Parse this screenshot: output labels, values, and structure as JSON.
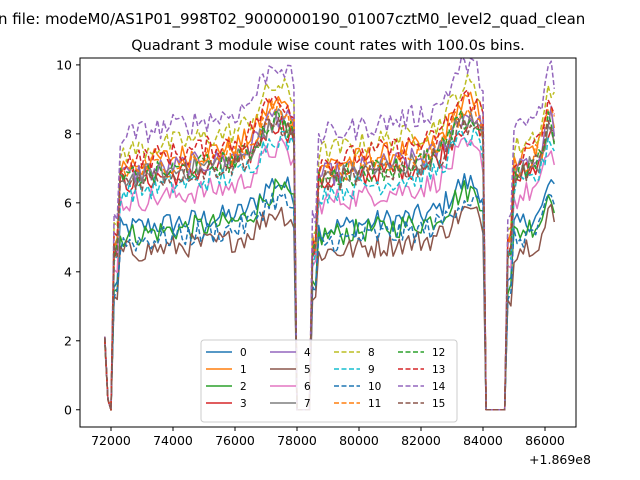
{
  "suptitle": "n file: modeM0/AS1P01_998T02_9000000190_01007cztM0_level2_quad_clean",
  "chart_data": {
    "type": "line",
    "title": "Quadrant 3 module wise count rates with 100.0s bins.",
    "xlabel": "",
    "ylabel": "",
    "x_offset_label": "+1.869e8",
    "xlim": [
      71000,
      87000
    ],
    "ylim": [
      -0.5,
      10.2
    ],
    "x_ticks": [
      72000,
      74000,
      76000,
      78000,
      80000,
      82000,
      84000,
      86000
    ],
    "x_tick_labels": [
      "72000",
      "74000",
      "76000",
      "78000",
      "80000",
      "82000",
      "84000",
      "86000"
    ],
    "y_ticks": [
      0,
      2,
      4,
      6,
      8,
      10
    ],
    "y_tick_labels": [
      "0",
      "2",
      "4",
      "6",
      "8",
      "10"
    ],
    "grid": false,
    "legend_position": "lower-center",
    "legend_columns": 4,
    "series": [
      {
        "name": "0",
        "color": "#1f77b4",
        "dash": "solid",
        "level": 5.4
      },
      {
        "name": "1",
        "color": "#ff7f0e",
        "dash": "solid",
        "level": 7.3
      },
      {
        "name": "2",
        "color": "#2ca02c",
        "dash": "solid",
        "level": 5.2
      },
      {
        "name": "3",
        "color": "#d62728",
        "dash": "solid",
        "level": 6.8
      },
      {
        "name": "4",
        "color": "#9467bd",
        "dash": "solid",
        "level": 7.0
      },
      {
        "name": "5",
        "color": "#8c564b",
        "dash": "solid",
        "level": 4.7
      },
      {
        "name": "6",
        "color": "#e377c2",
        "dash": "solid",
        "level": 6.2
      },
      {
        "name": "7",
        "color": "#7f7f7f",
        "dash": "solid",
        "level": 6.9
      },
      {
        "name": "8",
        "color": "#bcbd22",
        "dash": "dashed",
        "level": 7.7
      },
      {
        "name": "9",
        "color": "#17becf",
        "dash": "dashed",
        "level": 6.5
      },
      {
        "name": "10",
        "color": "#1f77b4",
        "dash": "dashed",
        "level": 5.0
      },
      {
        "name": "11",
        "color": "#ff7f0e",
        "dash": "dashed",
        "level": 7.1
      },
      {
        "name": "12",
        "color": "#2ca02c",
        "dash": "dashed",
        "level": 6.9
      },
      {
        "name": "13",
        "color": "#d62728",
        "dash": "dashed",
        "level": 7.4
      },
      {
        "name": "14",
        "color": "#9467bd",
        "dash": "dashed",
        "level": 8.2
      },
      {
        "name": "15",
        "color": "#8c564b",
        "dash": "dashed",
        "level": 6.8
      }
    ],
    "segments": [
      {
        "start": 72100,
        "end": 77900
      },
      {
        "start": 78500,
        "end": 84000
      },
      {
        "start": 84800,
        "end": 86300
      }
    ],
    "low_start_value": 2.0,
    "gap_value": 0.0
  }
}
